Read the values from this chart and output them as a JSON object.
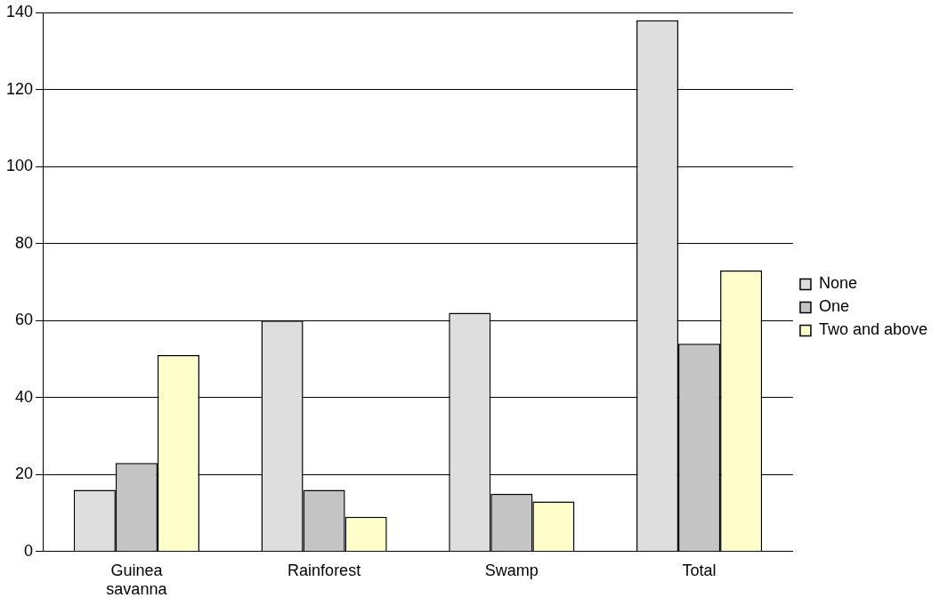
{
  "chart_data": {
    "type": "bar",
    "categories": [
      "Guinea savanna",
      "Rainforest",
      "Swamp",
      "Total"
    ],
    "series": [
      {
        "name": "None",
        "color": "#dedede",
        "values": [
          16,
          60,
          62,
          138
        ]
      },
      {
        "name": "One",
        "color": "#c4c4c4",
        "values": [
          23,
          16,
          15,
          54
        ]
      },
      {
        "name": "Two and above",
        "color": "#ffffcc",
        "values": [
          51,
          9,
          13,
          73
        ]
      }
    ],
    "ylim": [
      0,
      140
    ],
    "yticks": [
      0,
      20,
      40,
      60,
      80,
      100,
      120,
      140
    ],
    "grid": "y",
    "legend": "right"
  }
}
